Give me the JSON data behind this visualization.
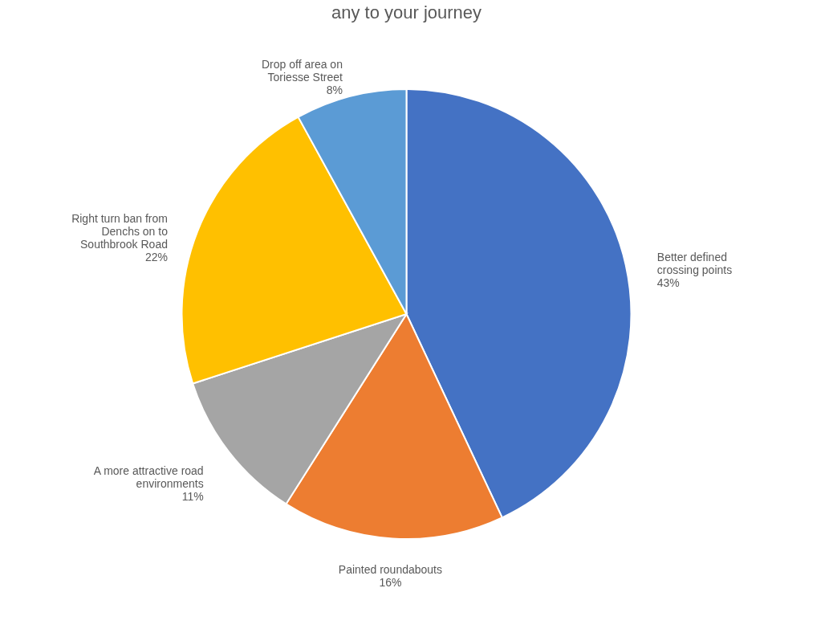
{
  "chart_data": {
    "type": "pie",
    "title": "any to your journey",
    "categories": [
      "Better defined crossing points",
      "Painted roundabouts",
      "A more attractive road environments",
      "Right turn ban from Denchs on to Southbrook Road",
      "Drop off area on Toriesse Street"
    ],
    "values": [
      43,
      16,
      11,
      22,
      8
    ],
    "value_labels": [
      "43%",
      "16%",
      "11%",
      "22%",
      "8%"
    ],
    "colors": [
      "#4472c4",
      "#ed7d31",
      "#a5a5a5",
      "#ffc000",
      "#5b9bd5"
    ],
    "legend": false
  }
}
